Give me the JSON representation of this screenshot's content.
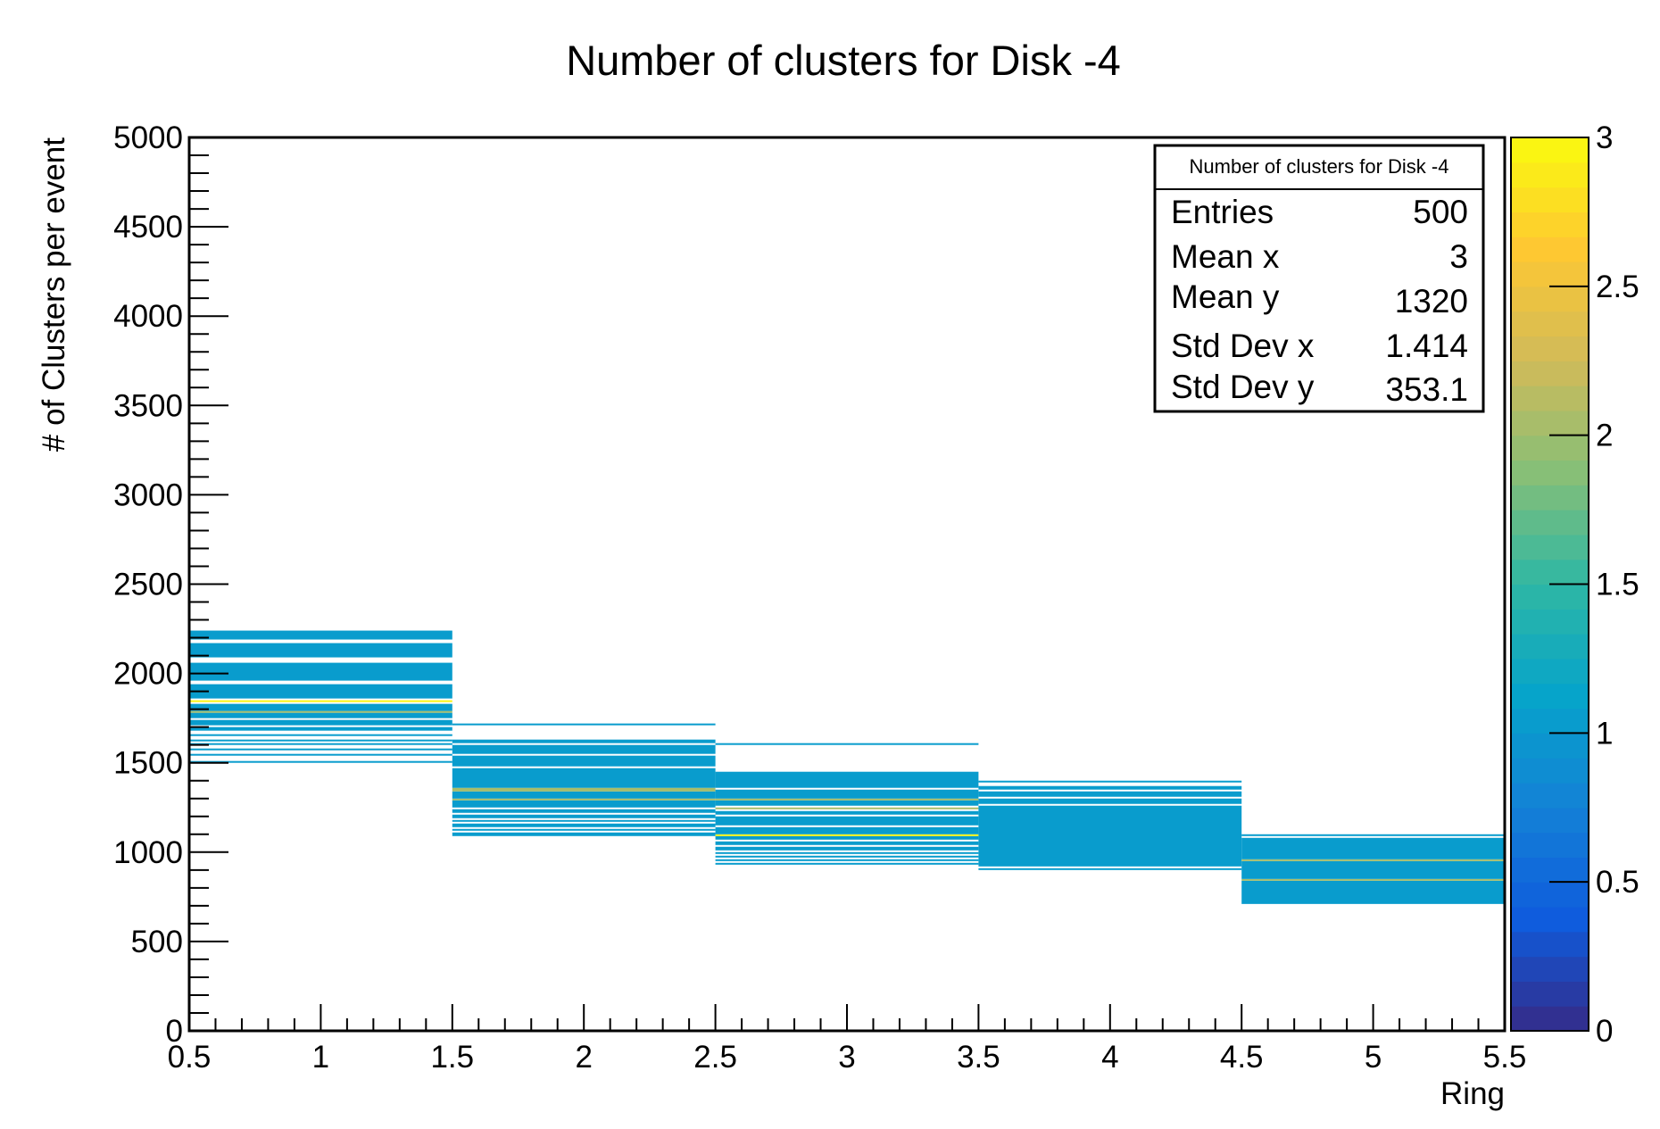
{
  "chart_data": {
    "type": "heatmap",
    "title": "Number of clusters for Disk -4",
    "xlabel": "Ring",
    "ylabel": "# of Clusters per event",
    "xlim": [
      0.5,
      5.5
    ],
    "ylim": [
      0,
      5000
    ],
    "x_ticks": [
      "0.5",
      "1",
      "1.5",
      "2",
      "2.5",
      "3",
      "3.5",
      "4",
      "4.5",
      "5",
      "5.5"
    ],
    "y_ticks": [
      "0",
      "500",
      "1000",
      "1500",
      "2000",
      "2500",
      "3000",
      "3500",
      "4000",
      "4500",
      "5000"
    ],
    "colorbar": {
      "range": [
        0,
        3
      ],
      "ticks": [
        "0",
        "0.5",
        "1",
        "1.5",
        "2",
        "2.5",
        "3"
      ],
      "palette": [
        "#352a87",
        "#0f5cdd",
        "#1481d6",
        "#06a4ca",
        "#2eb7a4",
        "#87bf77",
        "#d1bb59",
        "#fec832",
        "#f9fb0e"
      ]
    },
    "bin_height": 10,
    "series": [
      {
        "x_range": [
          0.5,
          1.5
        ],
        "bands": [
          {
            "y0": 1500,
            "y1": 1510,
            "count": 1
          },
          {
            "y0": 1540,
            "y1": 1550,
            "count": 1
          },
          {
            "y0": 1570,
            "y1": 1580,
            "count": 1
          },
          {
            "y0": 1600,
            "y1": 1610,
            "count": 1
          },
          {
            "y0": 1620,
            "y1": 1630,
            "count": 1
          },
          {
            "y0": 1650,
            "y1": 1660,
            "count": 1
          },
          {
            "y0": 1680,
            "y1": 1700,
            "count": 1
          },
          {
            "y0": 1710,
            "y1": 1740,
            "count": 1
          },
          {
            "y0": 1750,
            "y1": 1780,
            "count": 1
          },
          {
            "y0": 1780,
            "y1": 1790,
            "count": 2
          },
          {
            "y0": 1790,
            "y1": 1830,
            "count": 1
          },
          {
            "y0": 1840,
            "y1": 1850,
            "count": 3
          },
          {
            "y0": 1860,
            "y1": 1940,
            "count": 1
          },
          {
            "y0": 1960,
            "y1": 2060,
            "count": 1
          },
          {
            "y0": 2090,
            "y1": 2170,
            "count": 1
          },
          {
            "y0": 2190,
            "y1": 2240,
            "count": 1
          }
        ]
      },
      {
        "x_range": [
          1.5,
          2.5
        ],
        "bands": [
          {
            "y0": 1090,
            "y1": 1110,
            "count": 1
          },
          {
            "y0": 1120,
            "y1": 1130,
            "count": 1
          },
          {
            "y0": 1140,
            "y1": 1160,
            "count": 1
          },
          {
            "y0": 1170,
            "y1": 1180,
            "count": 1
          },
          {
            "y0": 1190,
            "y1": 1210,
            "count": 1
          },
          {
            "y0": 1220,
            "y1": 1240,
            "count": 1
          },
          {
            "y0": 1250,
            "y1": 1290,
            "count": 1
          },
          {
            "y0": 1290,
            "y1": 1300,
            "count": 2
          },
          {
            "y0": 1300,
            "y1": 1340,
            "count": 1
          },
          {
            "y0": 1340,
            "y1": 1360,
            "count": 2
          },
          {
            "y0": 1360,
            "y1": 1470,
            "count": 1
          },
          {
            "y0": 1480,
            "y1": 1540,
            "count": 1
          },
          {
            "y0": 1550,
            "y1": 1600,
            "count": 1
          },
          {
            "y0": 1610,
            "y1": 1630,
            "count": 1
          },
          {
            "y0": 1710,
            "y1": 1720,
            "count": 1
          }
        ]
      },
      {
        "x_range": [
          2.5,
          3.5
        ],
        "bands": [
          {
            "y0": 930,
            "y1": 940,
            "count": 1
          },
          {
            "y0": 950,
            "y1": 960,
            "count": 1
          },
          {
            "y0": 970,
            "y1": 980,
            "count": 1
          },
          {
            "y0": 990,
            "y1": 1000,
            "count": 1
          },
          {
            "y0": 1010,
            "y1": 1030,
            "count": 1
          },
          {
            "y0": 1040,
            "y1": 1060,
            "count": 1
          },
          {
            "y0": 1070,
            "y1": 1090,
            "count": 1
          },
          {
            "y0": 1090,
            "y1": 1100,
            "count": 3
          },
          {
            "y0": 1100,
            "y1": 1140,
            "count": 1
          },
          {
            "y0": 1150,
            "y1": 1200,
            "count": 1
          },
          {
            "y0": 1210,
            "y1": 1230,
            "count": 1
          },
          {
            "y0": 1240,
            "y1": 1250,
            "count": 2
          },
          {
            "y0": 1260,
            "y1": 1290,
            "count": 1
          },
          {
            "y0": 1290,
            "y1": 1300,
            "count": 2
          },
          {
            "y0": 1300,
            "y1": 1350,
            "count": 1
          },
          {
            "y0": 1360,
            "y1": 1450,
            "count": 1
          },
          {
            "y0": 1600,
            "y1": 1610,
            "count": 1
          }
        ]
      },
      {
        "x_range": [
          3.5,
          4.5
        ],
        "bands": [
          {
            "y0": 900,
            "y1": 910,
            "count": 1
          },
          {
            "y0": 920,
            "y1": 1260,
            "count": 1
          },
          {
            "y0": 1270,
            "y1": 1300,
            "count": 1
          },
          {
            "y0": 1310,
            "y1": 1340,
            "count": 1
          },
          {
            "y0": 1350,
            "y1": 1370,
            "count": 1
          },
          {
            "y0": 1390,
            "y1": 1400,
            "count": 1
          }
        ]
      },
      {
        "x_range": [
          4.5,
          5.5
        ],
        "bands": [
          {
            "y0": 710,
            "y1": 840,
            "count": 1
          },
          {
            "y0": 840,
            "y1": 850,
            "count": 2
          },
          {
            "y0": 850,
            "y1": 950,
            "count": 1
          },
          {
            "y0": 950,
            "y1": 960,
            "count": 2
          },
          {
            "y0": 960,
            "y1": 1080,
            "count": 1
          },
          {
            "y0": 1090,
            "y1": 1100,
            "count": 1
          }
        ]
      }
    ],
    "stats_box": {
      "title": "Number of clusters for Disk -4",
      "rows": [
        {
          "label": "Entries",
          "value": "500"
        },
        {
          "label": "Mean x",
          "value": "3"
        },
        {
          "label": "Mean y",
          "value": "1320"
        },
        {
          "label": "Std Dev x",
          "value": "1.414"
        },
        {
          "label": "Std Dev y",
          "value": "353.1"
        }
      ]
    }
  }
}
